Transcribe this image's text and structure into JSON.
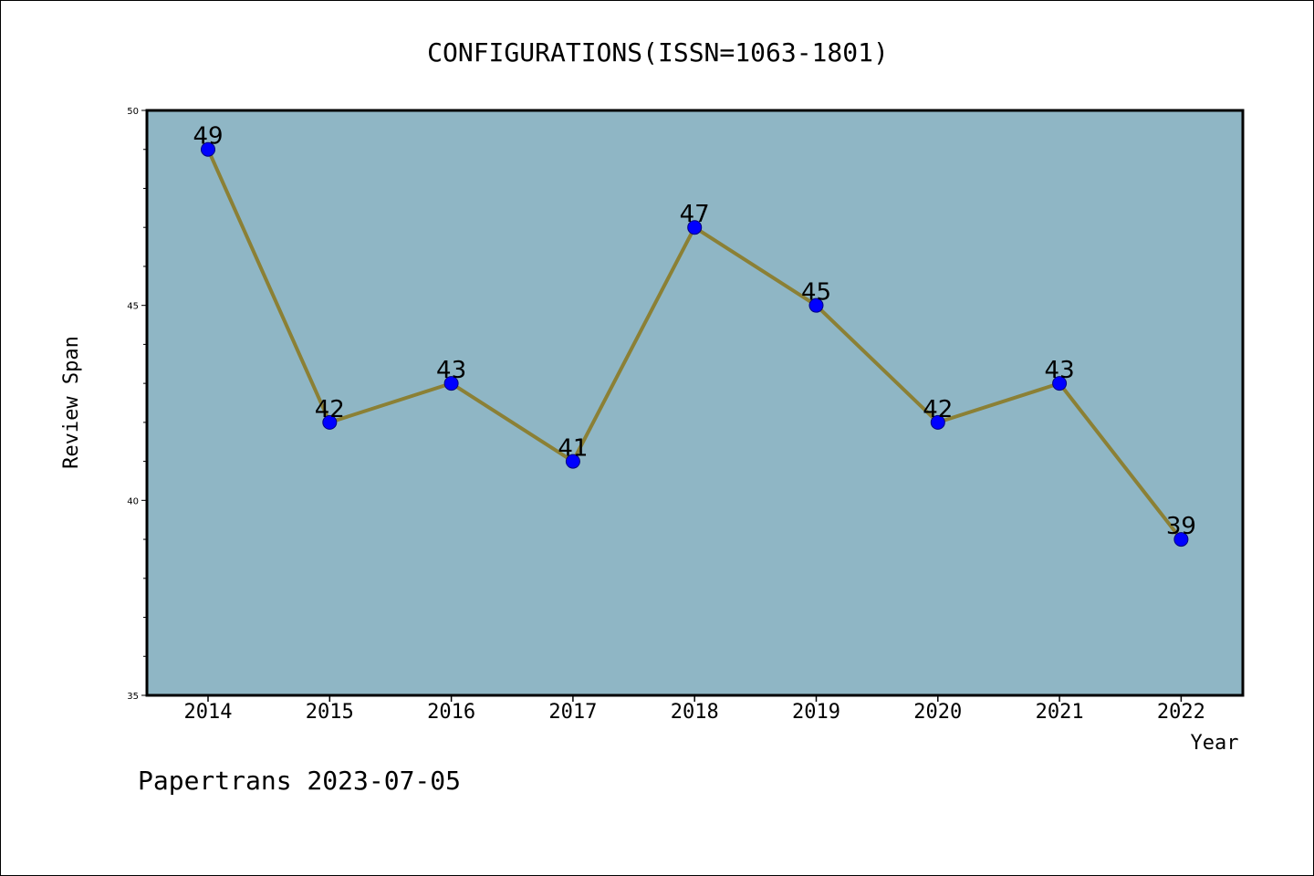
{
  "chart_data": {
    "type": "line",
    "title": "CONFIGURATIONS(ISSN=1063-1801)",
    "xlabel": "Year",
    "ylabel": "Review Span",
    "categories": [
      "2014",
      "2015",
      "2016",
      "2017",
      "2018",
      "2019",
      "2020",
      "2021",
      "2022"
    ],
    "series": [
      {
        "values": [
          49,
          42,
          43,
          41,
          47,
          45,
          42,
          43,
          39
        ]
      }
    ],
    "ylim": [
      35,
      50
    ],
    "y_ticks": [
      "35",
      "40",
      "45",
      "50"
    ],
    "data_labels": [
      "49",
      "42",
      "43",
      "41",
      "47",
      "45",
      "42",
      "43",
      "39"
    ],
    "grid": false,
    "legend": "none"
  },
  "colors": {
    "plot_background": "#8fb6c5",
    "line": "#8b8035",
    "marker": "#0000ff",
    "marker_edge": "#000080",
    "frame": "#000000"
  },
  "footer": "Papertrans 2023-07-05"
}
